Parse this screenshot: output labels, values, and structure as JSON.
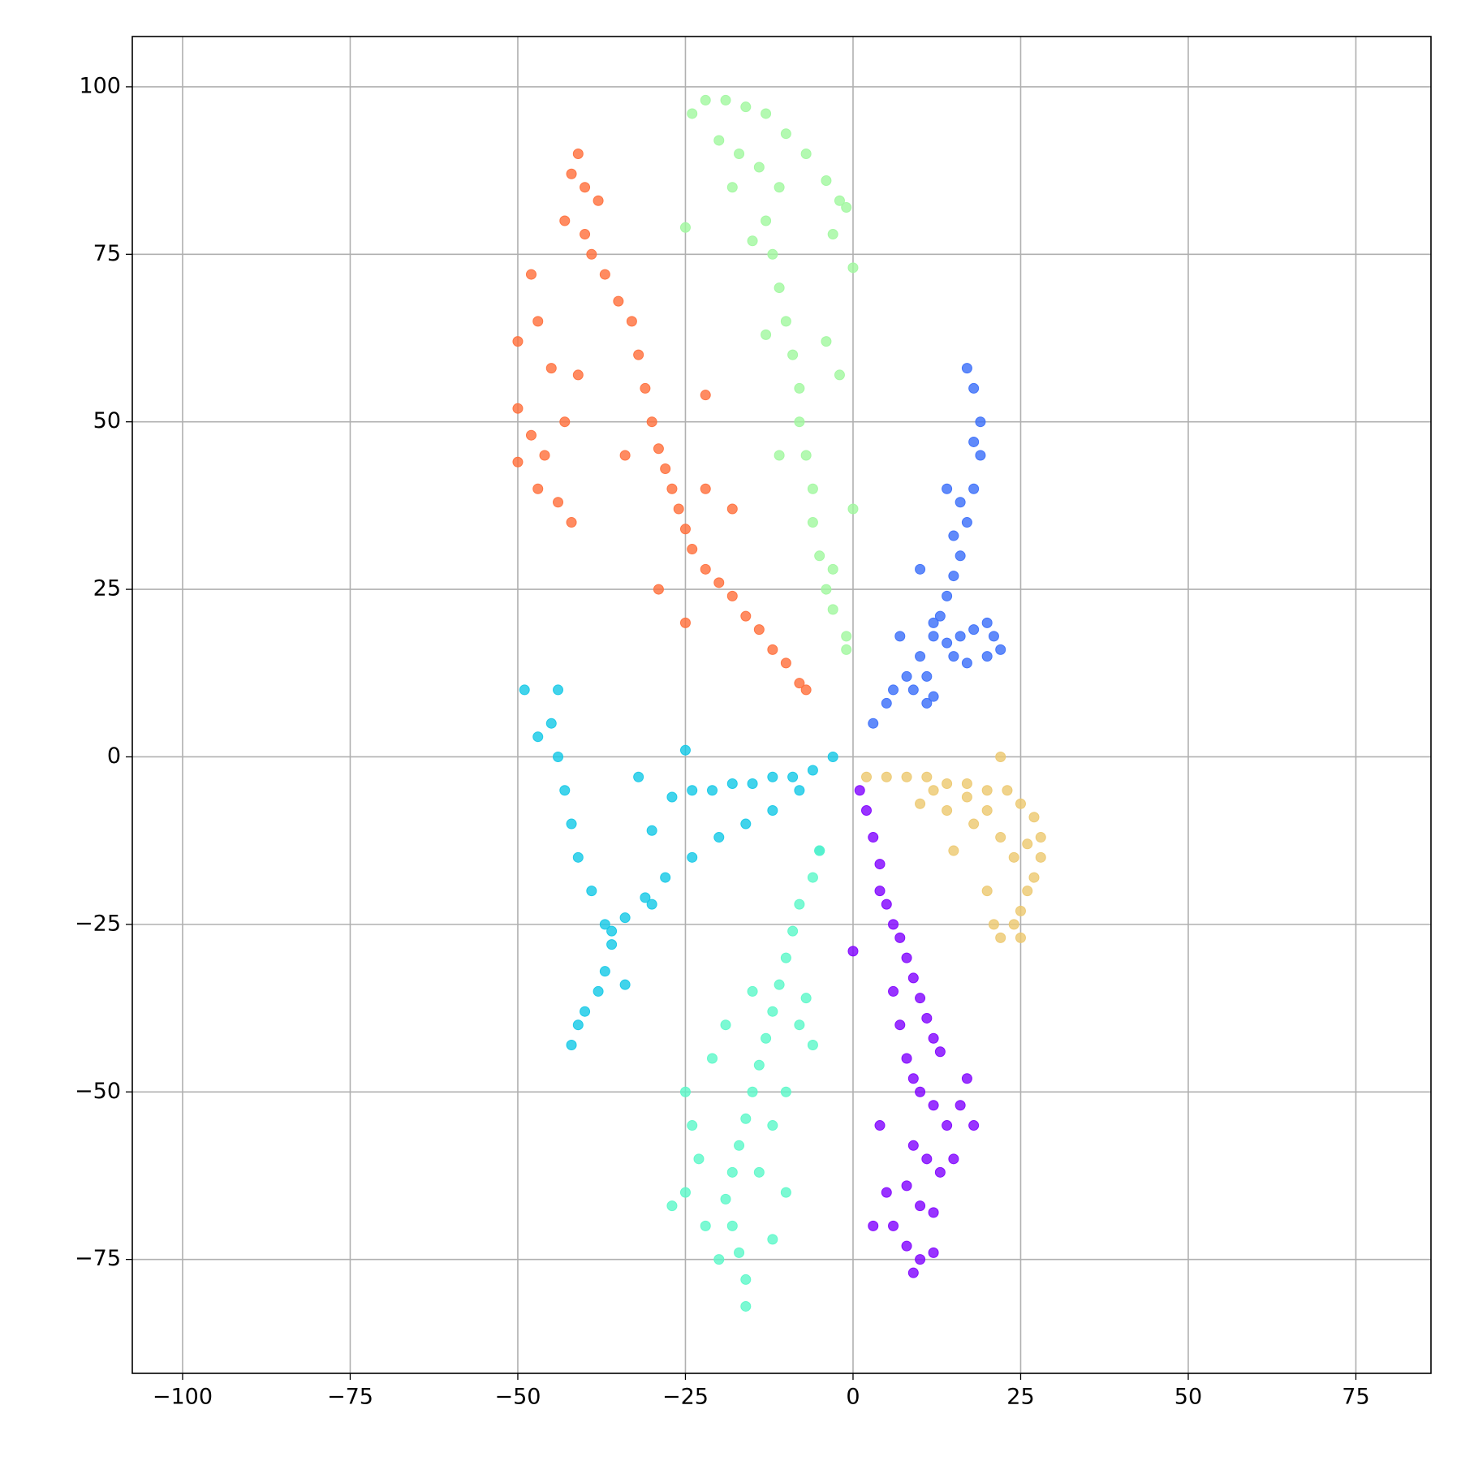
{
  "chart_data": {
    "type": "scatter",
    "xlim": [
      -107.5,
      86.2
    ],
    "ylim": [
      -92,
      107.5
    ],
    "xticks": [
      {
        "value": -100,
        "label": "−100"
      },
      {
        "value": -75,
        "label": "−75"
      },
      {
        "value": -50,
        "label": "−50"
      },
      {
        "value": -25,
        "label": "−25"
      },
      0,
      25,
      50,
      75
    ],
    "yticks": [
      {
        "value": -75,
        "label": "−75"
      },
      {
        "value": -50,
        "label": "−50"
      },
      {
        "value": -25,
        "label": "−25"
      },
      0,
      25,
      50,
      75,
      100
    ],
    "grid": true,
    "series": [
      {
        "color": "#8000ff",
        "x": [
          1,
          2,
          3,
          4,
          4,
          5,
          6,
          7,
          8,
          9,
          10,
          11,
          12,
          13,
          6,
          7,
          8,
          9,
          10,
          12,
          14,
          16,
          18,
          9,
          11,
          13,
          8,
          10,
          12,
          6,
          3,
          8,
          10,
          12,
          9,
          5,
          15,
          17,
          0,
          4
        ],
        "values": [
          -5,
          -8,
          -12,
          -16,
          -20,
          -22,
          -25,
          -27,
          -30,
          -33,
          -36,
          -39,
          -42,
          -44,
          -35,
          -40,
          -45,
          -48,
          -50,
          -52,
          -55,
          -52,
          -55,
          -58,
          -60,
          -62,
          -64,
          -67,
          -68,
          -70,
          -70,
          -73,
          -75,
          -74,
          -77,
          -65,
          -60,
          -48,
          -29,
          -55
        ]
      },
      {
        "color": "#386df9",
        "x": [
          3,
          5,
          6,
          8,
          10,
          12,
          13,
          14,
          15,
          16,
          17,
          18,
          19,
          19,
          18,
          17,
          18,
          16,
          15,
          12,
          14,
          16,
          18,
          20,
          21,
          22,
          20,
          17,
          15,
          11,
          9,
          12,
          7,
          10,
          14,
          11
        ],
        "values": [
          5,
          8,
          10,
          12,
          15,
          18,
          21,
          24,
          27,
          30,
          35,
          40,
          45,
          50,
          55,
          58,
          47,
          38,
          33,
          20,
          17,
          18,
          19,
          20,
          18,
          16,
          15,
          14,
          15,
          12,
          10,
          9,
          18,
          28,
          40,
          8
        ]
      },
      {
        "color": "#12c8e6",
        "x": [
          -3,
          -6,
          -9,
          -12,
          -15,
          -18,
          -21,
          -24,
          -27,
          -8,
          -12,
          -16,
          -20,
          -24,
          -28,
          -31,
          -34,
          -36,
          -30,
          -25,
          -44,
          -45,
          -44,
          -43,
          -42,
          -41,
          -39,
          -37,
          -36,
          -37,
          -38,
          -40,
          -41,
          -42,
          -49,
          -47,
          -34,
          -30,
          -5,
          -32
        ],
        "values": [
          0,
          -2,
          -3,
          -3,
          -4,
          -4,
          -5,
          -5,
          -6,
          -5,
          -8,
          -10,
          -12,
          -15,
          -18,
          -21,
          -24,
          -26,
          -11,
          1,
          10,
          5,
          0,
          -5,
          -10,
          -15,
          -20,
          -25,
          -28,
          -32,
          -35,
          -38,
          -40,
          -43,
          10,
          3,
          -34,
          -22,
          -14,
          -3
        ]
      },
      {
        "color": "#5af8c8",
        "x": [
          -5,
          -6,
          -8,
          -9,
          -10,
          -11,
          -12,
          -13,
          -14,
          -15,
          -16,
          -17,
          -18,
          -19,
          -18,
          -17,
          -16,
          -16,
          -20,
          -22,
          -25,
          -24,
          -25,
          -21,
          -19,
          -8,
          -6,
          -10,
          -12,
          -7,
          -14,
          -10,
          -12,
          -27,
          -23,
          -15
        ],
        "values": [
          -14,
          -18,
          -22,
          -26,
          -30,
          -34,
          -38,
          -42,
          -46,
          -50,
          -54,
          -58,
          -62,
          -66,
          -70,
          -74,
          -78,
          -82,
          -75,
          -70,
          -65,
          -55,
          -50,
          -45,
          -40,
          -40,
          -43,
          -50,
          -55,
          -36,
          -62,
          -65,
          -72,
          -67,
          -60,
          -35
        ]
      },
      {
        "color": "#a0f79e",
        "x": [
          -24,
          -22,
          -19,
          -16,
          -13,
          -10,
          -7,
          -4,
          -2,
          -1,
          -20,
          -17,
          -14,
          -18,
          -11,
          -13,
          -12,
          -11,
          -10,
          -9,
          -8,
          -8,
          -7,
          -6,
          -6,
          -5,
          -4,
          -3,
          -1,
          -1,
          -3,
          0,
          -2,
          -13,
          -11,
          -4,
          -15,
          -25,
          0,
          -3
        ],
        "values": [
          96,
          98,
          98,
          97,
          96,
          93,
          90,
          86,
          83,
          82,
          92,
          90,
          88,
          85,
          85,
          80,
          75,
          70,
          65,
          60,
          55,
          50,
          45,
          40,
          35,
          30,
          25,
          22,
          18,
          16,
          78,
          73,
          57,
          63,
          45,
          62,
          77,
          79,
          37,
          28
        ]
      },
      {
        "color": "#ecc86e",
        "x": [
          2,
          5,
          8,
          11,
          14,
          17,
          20,
          22,
          23,
          25,
          27,
          28,
          28,
          27,
          26,
          25,
          24,
          25,
          22,
          21,
          20,
          15,
          10,
          14,
          18,
          22,
          24,
          20,
          17,
          26,
          12
        ],
        "values": [
          -3,
          -3,
          -3,
          -3,
          -4,
          -4,
          -5,
          0,
          -5,
          -7,
          -9,
          -12,
          -15,
          -18,
          -20,
          -23,
          -25,
          -27,
          -27,
          -25,
          -20,
          -14,
          -7,
          -8,
          -10,
          -12,
          -15,
          -8,
          -6,
          -13,
          -5
        ]
      },
      {
        "color": "#ff6e3a",
        "x": [
          -41,
          -42,
          -40,
          -38,
          -43,
          -40,
          -39,
          -37,
          -35,
          -33,
          -32,
          -31,
          -30,
          -29,
          -28,
          -27,
          -26,
          -25,
          -24,
          -22,
          -20,
          -18,
          -16,
          -14,
          -12,
          -10,
          -8,
          -7,
          -48,
          -50,
          -47,
          -45,
          -50,
          -48,
          -50,
          -47,
          -44,
          -42,
          -46,
          -43,
          -41,
          -34,
          -22,
          -18,
          -25,
          -29,
          -22
        ],
        "values": [
          90,
          87,
          85,
          83,
          80,
          78,
          75,
          72,
          68,
          65,
          60,
          55,
          50,
          46,
          43,
          40,
          37,
          34,
          31,
          28,
          26,
          24,
          21,
          19,
          16,
          14,
          11,
          10,
          72,
          62,
          65,
          58,
          52,
          48,
          44,
          40,
          38,
          35,
          45,
          50,
          57,
          45,
          40,
          37,
          20,
          25,
          54
        ]
      }
    ]
  }
}
